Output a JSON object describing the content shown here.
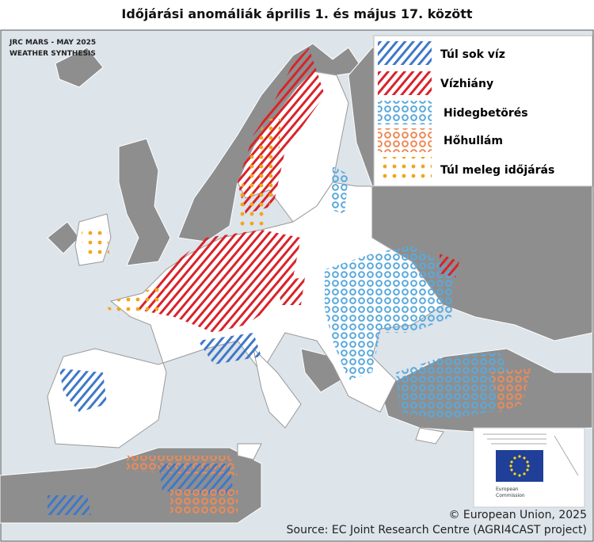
{
  "header": {
    "title": "Időjárási anomáliák április 1. és május 17. között"
  },
  "map": {
    "badge": [
      "JRC MARS - MAY 2025",
      "WEATHER SYNTHESIS"
    ]
  },
  "legend": {
    "items": [
      {
        "label": "Túl sok víz"
      },
      {
        "label": "Vízhiány"
      },
      {
        "label": "Hidegbetörés"
      },
      {
        "label": "Hőhullám"
      },
      {
        "label": "Túl meleg időjárás"
      }
    ]
  },
  "logo": {
    "lines": [
      "European",
      "Commission"
    ]
  },
  "footer": {
    "copyright": "© European Union, 2025",
    "source": "Source: EC Joint Research Centre (AGRI4CAST project)"
  }
}
